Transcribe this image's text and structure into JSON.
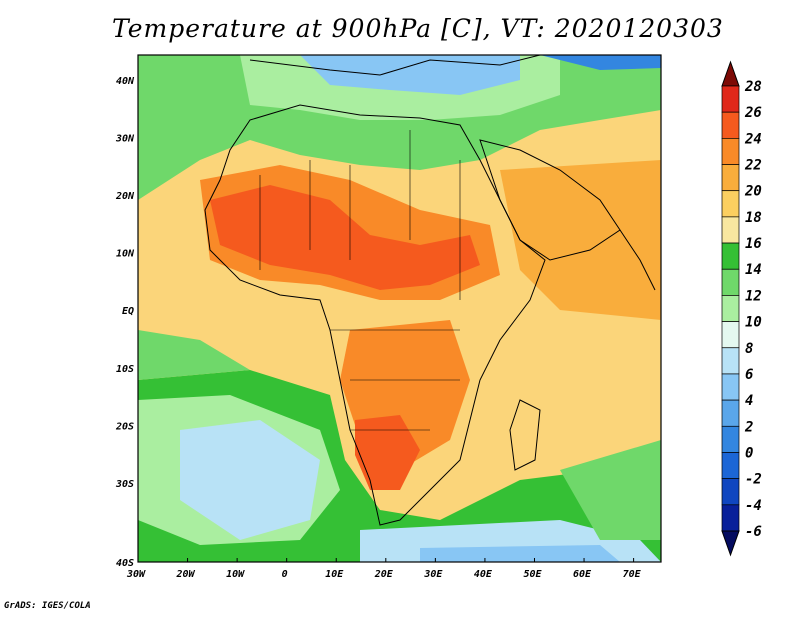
{
  "title": "Temperature at 900hPa [C], VT: 2020120303",
  "credit": "GrADS: IGES/COLA",
  "map": {
    "lon_range": [
      -30,
      75
    ],
    "lat_range": [
      -40,
      45
    ],
    "lon_ticks": [
      "30W",
      "20W",
      "10W",
      "0",
      "10E",
      "20E",
      "30E",
      "40E",
      "50E",
      "60E",
      "70E"
    ],
    "lat_ticks": [
      "40N",
      "30N",
      "20N",
      "10N",
      "EQ",
      "10S",
      "20S",
      "30S",
      "40S"
    ],
    "field": "temperature at 900hPa",
    "units": "C"
  },
  "colorbar": {
    "labels": [
      "28",
      "26",
      "24",
      "22",
      "20",
      "18",
      "16",
      "14",
      "12",
      "10",
      "8",
      "6",
      "4",
      "2",
      "0",
      "-2",
      "-4",
      "-6"
    ],
    "colors": [
      "#7d0a06",
      "#e0281a",
      "#f55a1e",
      "#f98a28",
      "#f9ad3c",
      "#fbcf60",
      "#f8e7a0",
      "#35c035",
      "#6fd86a",
      "#aaeea0",
      "#e4f8f0",
      "#b8e2f6",
      "#88c6f4",
      "#5aa6ea",
      "#3386e0",
      "#1c66d6",
      "#0f46c0",
      "#08209a",
      "#040c60"
    ]
  }
}
